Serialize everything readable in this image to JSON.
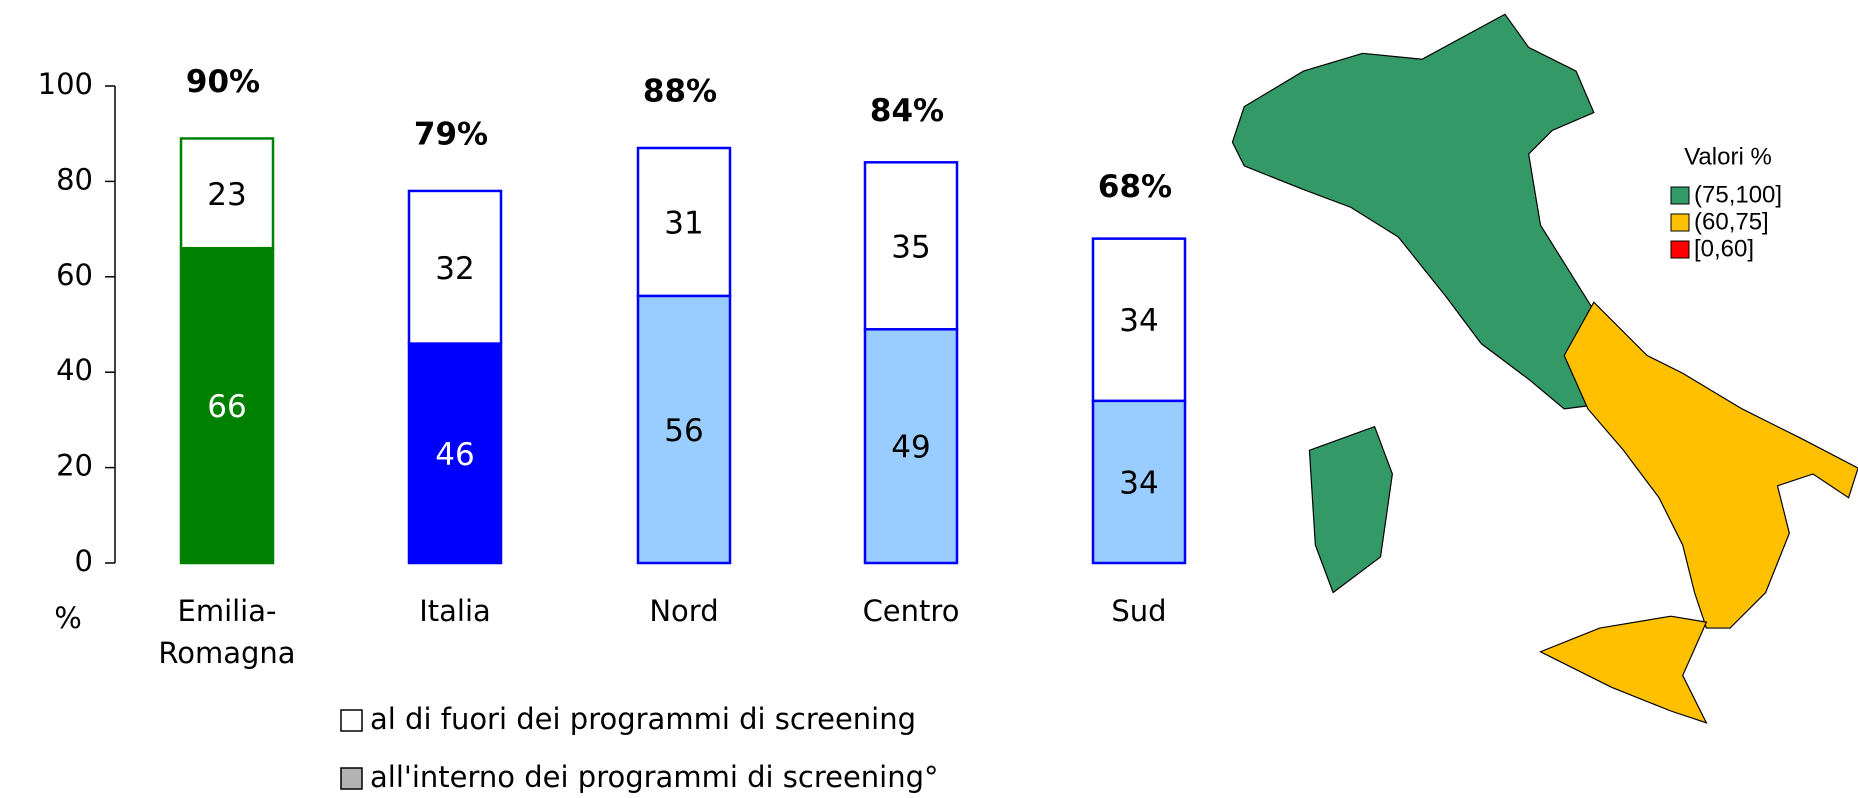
{
  "chart_data": {
    "type": "stacked_bar",
    "categories": [
      "Emilia-Romagna",
      "Italia",
      "Nord",
      "Centro",
      "Sud"
    ],
    "y_label": "%",
    "ylim": [
      0,
      100
    ],
    "yticks": [
      0,
      20,
      40,
      60,
      80,
      100
    ],
    "series": [
      {
        "name": "all'interno dei programmi di screening°",
        "color": "#b3b3b3",
        "values": [
          66,
          46,
          56,
          49,
          34
        ],
        "colors": [
          "#008000",
          "#0000ff",
          "#99ccff",
          "#99ccff",
          "#99ccff"
        ],
        "label_colors": [
          "#ffffff",
          "#ffffff",
          "#000000",
          "#000000",
          "#000000"
        ]
      },
      {
        "name": "al di fuori dei programmi di screening",
        "color": "#ffffff",
        "values": [
          23,
          32,
          31,
          35,
          34
        ],
        "colors": [
          "#ffffff",
          "#ffffff",
          "#ffffff",
          "#ffffff",
          "#ffffff"
        ],
        "label_colors": [
          "#000000",
          "#000000",
          "#000000",
          "#000000",
          "#000000"
        ]
      }
    ],
    "edge_colors": [
      "#008000",
      "#0000ff",
      "#0000ff",
      "#0000ff",
      "#0000ff"
    ],
    "totals": {
      "values": [
        90,
        79,
        88,
        84,
        68
      ],
      "value_labels": [
        "90%",
        "79%",
        "88%",
        "84%",
        "68%"
      ]
    },
    "legend_order": [
      1,
      0
    ]
  },
  "map": {
    "legend_title": "Valori %",
    "classes": [
      {
        "label": "(75,100]",
        "color": "#339966"
      },
      {
        "label": "(60,75]",
        "color": "#ffc000"
      },
      {
        "label": "[0,60]",
        "color": "#ff0000"
      }
    ]
  }
}
